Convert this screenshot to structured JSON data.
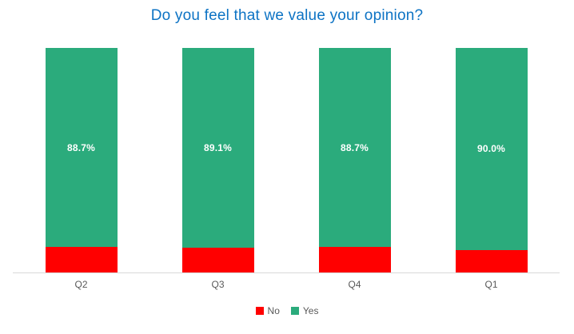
{
  "title": {
    "text": "Do you feel that we value your opinion?",
    "color": "#0d73c4"
  },
  "chart_data": {
    "type": "bar",
    "subtype": "stacked-100-percent",
    "title": "Do you feel that we value your opinion?",
    "categories": [
      "Q2",
      "Q3",
      "Q4",
      "Q1"
    ],
    "series": [
      {
        "name": "No",
        "color": "#ff0000",
        "values": [
          11.3,
          10.9,
          11.3,
          10.0
        ],
        "labels": [
          "",
          "",
          "",
          ""
        ]
      },
      {
        "name": "Yes",
        "color": "#2bab7c",
        "values": [
          88.7,
          89.1,
          88.7,
          90.0
        ],
        "labels": [
          "88.7%",
          "89.1%",
          "88.7%",
          "90.0%"
        ]
      }
    ],
    "ylim": [
      0,
      100
    ],
    "grid": false,
    "legend_position": "bottom",
    "data_label_color": "#ffffff",
    "axis_line_color": "#d9d9d9",
    "axis_text_color": "#595959",
    "xlabel": "",
    "ylabel": ""
  }
}
